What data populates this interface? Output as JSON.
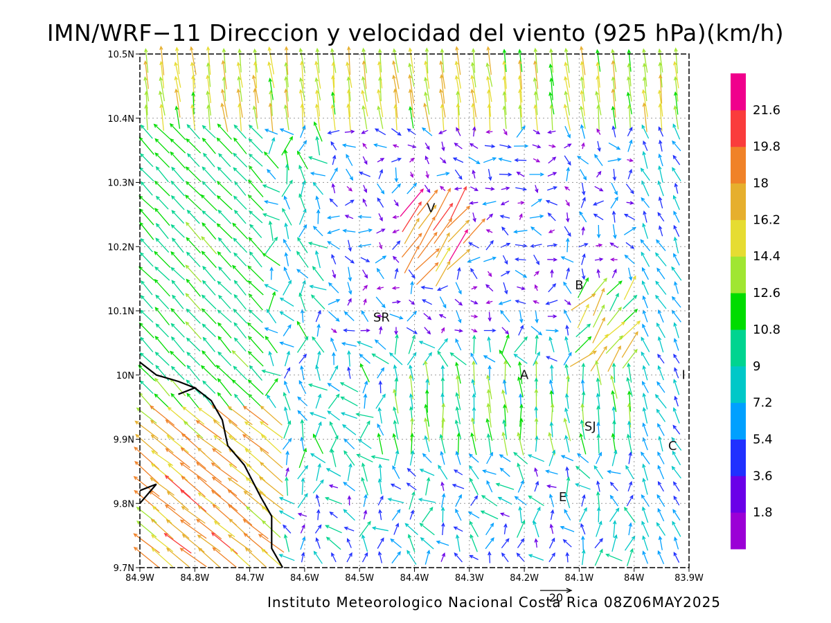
{
  "title": "IMN/WRF−11 Direccion y velocidad del viento (925 hPa)(km/h)",
  "footer": "Instituto Meteorologico Nacional Costa Rica 08Z06MAY2025",
  "reference_vector": {
    "label": "20",
    "value": 20
  },
  "map": {
    "lon_range": [
      -84.9,
      -83.9
    ],
    "lat_range": [
      9.7,
      10.5
    ],
    "x_ticks": [
      {
        "value": -84.9,
        "label": "84.9W"
      },
      {
        "value": -84.8,
        "label": "84.8W"
      },
      {
        "value": -84.7,
        "label": "84.7W"
      },
      {
        "value": -84.6,
        "label": "84.6W"
      },
      {
        "value": -84.5,
        "label": "84.5W"
      },
      {
        "value": -84.4,
        "label": "84.4W"
      },
      {
        "value": -84.3,
        "label": "84.3W"
      },
      {
        "value": -84.2,
        "label": "84.2W"
      },
      {
        "value": -84.1,
        "label": "84.1W"
      },
      {
        "value": -84.0,
        "label": "84W"
      },
      {
        "value": -83.9,
        "label": "83.9W"
      }
    ],
    "y_ticks": [
      {
        "value": 9.7,
        "label": "9.7N"
      },
      {
        "value": 9.8,
        "label": "9.8N"
      },
      {
        "value": 9.9,
        "label": "9.9N"
      },
      {
        "value": 10.0,
        "label": "10N"
      },
      {
        "value": 10.1,
        "label": "10.1N"
      },
      {
        "value": 10.2,
        "label": "10.2N"
      },
      {
        "value": 10.3,
        "label": "10.3N"
      },
      {
        "value": 10.4,
        "label": "10.4N"
      },
      {
        "value": 10.5,
        "label": "10.5N"
      }
    ],
    "grid": true,
    "cities": [
      {
        "label": "V",
        "lon": -84.37,
        "lat": 10.26
      },
      {
        "label": "B",
        "lon": -84.1,
        "lat": 10.14
      },
      {
        "label": "SR",
        "lon": -84.46,
        "lat": 10.09
      },
      {
        "label": "A",
        "lon": -84.2,
        "lat": 10.0
      },
      {
        "label": "I",
        "lon": -83.91,
        "lat": 10.0
      },
      {
        "label": "SJ",
        "lon": -84.08,
        "lat": 9.92
      },
      {
        "label": "C",
        "lon": -83.93,
        "lat": 9.89
      },
      {
        "label": "E",
        "lon": -84.13,
        "lat": 9.81
      }
    ],
    "coastline": [
      [
        -84.9,
        10.02
      ],
      [
        -84.87,
        10.0
      ],
      [
        -84.83,
        9.99
      ],
      [
        -84.8,
        9.98
      ],
      [
        -84.83,
        9.97
      ],
      [
        -84.8,
        9.98
      ],
      [
        -84.77,
        9.96
      ],
      [
        -84.75,
        9.93
      ],
      [
        -84.74,
        9.89
      ],
      [
        -84.71,
        9.86
      ],
      [
        -84.68,
        9.81
      ],
      [
        -84.66,
        9.78
      ],
      [
        -84.66,
        9.73
      ],
      [
        -84.64,
        9.7
      ]
    ],
    "coastline_2": [
      [
        -84.9,
        9.82
      ],
      [
        -84.87,
        9.83
      ],
      [
        -84.9,
        9.8
      ]
    ]
  },
  "colorbar": {
    "colors": [
      "#9b00d6",
      "#6a00e8",
      "#2030ff",
      "#00a0ff",
      "#00c8c8",
      "#00d490",
      "#00dc00",
      "#a0e632",
      "#e6dc32",
      "#e6af2d",
      "#f08228",
      "#fa3c3c",
      "#f0008c"
    ],
    "labels": [
      "1.8",
      "3.6",
      "5.4",
      "7.2",
      "9",
      "10.8",
      "12.6",
      "14.4",
      "16.2",
      "18",
      "19.8",
      "21.6"
    ]
  },
  "wind_regions": [
    {
      "region": "northern ridge 10.38-10.50N",
      "direction_deg_to": 170,
      "speed_kmh": [
        12,
        17
      ]
    },
    {
      "region": "western slopes 84.9-84.7W north of 9.9N",
      "direction_deg_to": 130,
      "speed_kmh": [
        9,
        13
      ]
    },
    {
      "region": "SW coastal 84.9-84.65W south of 9.95N",
      "direction_deg_to": 125,
      "speed_kmh": [
        14,
        20
      ]
    },
    {
      "region": "central valley 84.4-84.0W 9.85-10.0N",
      "direction_deg_to": 170,
      "speed_kmh": [
        7,
        14
      ]
    },
    {
      "region": "near V volcano",
      "direction_deg_to": 200,
      "speed_kmh": [
        18,
        22
      ]
    },
    {
      "region": "east 84.0-83.9W",
      "direction_deg_to": 150,
      "speed_kmh": [
        4,
        9
      ]
    }
  ]
}
